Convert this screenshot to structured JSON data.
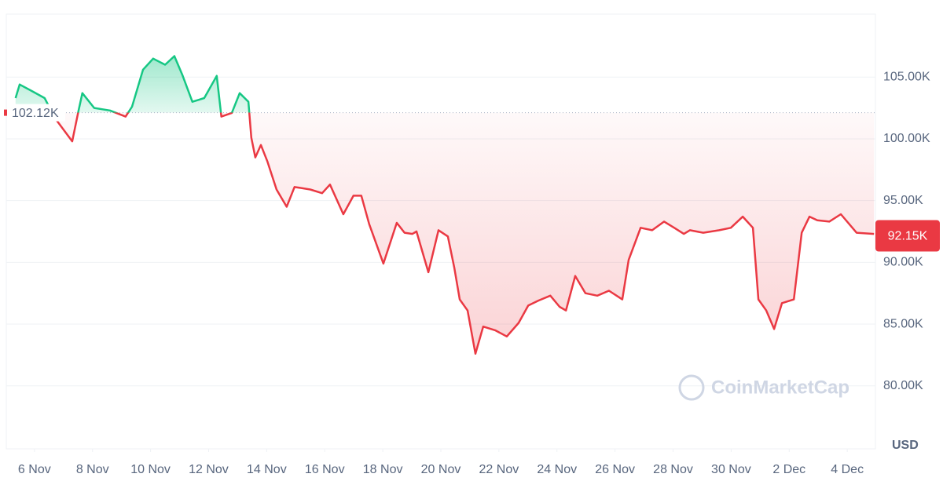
{
  "chart_data": {
    "type": "line",
    "x": [
      -0.65,
      -0.51,
      -0.11,
      0.35,
      0.7,
      1.3,
      1.52,
      1.65,
      2.06,
      2.6,
      3.14,
      3.36,
      3.74,
      4.09,
      4.5,
      4.82,
      5.09,
      5.44,
      5.85,
      6.28,
      6.44,
      6.8,
      7.07,
      7.37,
      7.47,
      7.61,
      7.8,
      8.02,
      8.34,
      8.69,
      8.96,
      9.5,
      9.91,
      10.18,
      10.64,
      10.99,
      11.26,
      11.53,
      12.02,
      12.48,
      12.75,
      13.02,
      13.16,
      13.57,
      13.92,
      14.24,
      14.46,
      14.65,
      14.92,
      15.19,
      15.46,
      15.87,
      16.27,
      16.68,
      17.01,
      17.36,
      17.77,
      18.09,
      18.31,
      18.63,
      18.98,
      19.39,
      19.79,
      20.25,
      20.47,
      20.88,
      21.28,
      21.69,
      22.04,
      22.37,
      22.58,
      23.04,
      23.59,
      23.99,
      24.4,
      24.75,
      24.94,
      25.21,
      25.48,
      25.75,
      26.16,
      26.43,
      26.7,
      26.97,
      27.38,
      27.78,
      28.32,
      28.92
    ],
    "values": [
      103300,
      104400,
      103900,
      103300,
      101700,
      99800,
      102300,
      103700,
      102500,
      102300,
      101800,
      102600,
      105600,
      106500,
      106000,
      106700,
      105200,
      103000,
      103300,
      105100,
      101800,
      102100,
      103700,
      103000,
      100100,
      98500,
      99500,
      98200,
      95900,
      94500,
      96100,
      95900,
      95600,
      96300,
      93900,
      95400,
      95400,
      93100,
      89900,
      93200,
      92400,
      92300,
      92500,
      89200,
      92600,
      92100,
      89600,
      87000,
      86100,
      82600,
      84800,
      84500,
      84000,
      85100,
      86500,
      86900,
      87300,
      86400,
      86100,
      88900,
      87500,
      87300,
      87700,
      87000,
      90200,
      92800,
      92600,
      93300,
      92800,
      92300,
      92600,
      92400,
      92600,
      92800,
      93700,
      92800,
      87000,
      86100,
      84600,
      86700,
      87000,
      92400,
      93700,
      93400,
      93300,
      93900,
      92400,
      92300
    ],
    "colors": {
      "up": "#16c784",
      "down": "#ea3943"
    },
    "baseline": {
      "value": 102120,
      "label": "102.12K"
    },
    "last_price": {
      "value": 92150,
      "label": "92.15K"
    },
    "xlim": [
      -0.97,
      28.97
    ],
    "xticks": [
      {
        "value": 0,
        "label": "6 Nov"
      },
      {
        "value": 2,
        "label": "8 Nov"
      },
      {
        "value": 4,
        "label": "10 Nov"
      },
      {
        "value": 6,
        "label": "12 Nov"
      },
      {
        "value": 8,
        "label": "14 Nov"
      },
      {
        "value": 10,
        "label": "16 Nov"
      },
      {
        "value": 12,
        "label": "18 Nov"
      },
      {
        "value": 14,
        "label": "20 Nov"
      },
      {
        "value": 16,
        "label": "22 Nov"
      },
      {
        "value": 18,
        "label": "24 Nov"
      },
      {
        "value": 20,
        "label": "26 Nov"
      },
      {
        "value": 22,
        "label": "28 Nov"
      },
      {
        "value": 24,
        "label": "30 Nov"
      },
      {
        "value": 26,
        "label": "2 Dec"
      },
      {
        "value": 28,
        "label": "4 Dec"
      }
    ],
    "ylim": [
      74900,
      110100
    ],
    "yticks": [
      {
        "value": 80000,
        "label": "80.00K"
      },
      {
        "value": 85000,
        "label": "85.00K"
      },
      {
        "value": 90000,
        "label": "90.00K"
      },
      {
        "value": 95000,
        "label": "95.00K"
      },
      {
        "value": 100000,
        "label": "100.00K"
      },
      {
        "value": 105000,
        "label": "105.00K"
      }
    ],
    "grid": true,
    "currency": "USD",
    "watermark": "CoinMarketCap"
  }
}
